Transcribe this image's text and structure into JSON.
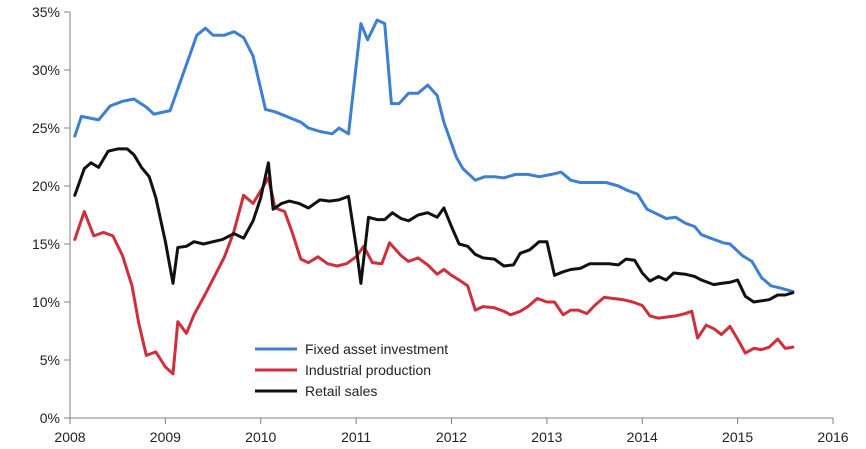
{
  "chart_data": {
    "type": "line",
    "title": "",
    "xlabel": "",
    "ylabel": "",
    "xlim": [
      2008,
      2016
    ],
    "ylim": [
      0,
      35
    ],
    "x_ticks": [
      "2008",
      "2009",
      "2010",
      "2011",
      "2012",
      "2013",
      "2014",
      "2015",
      "2016"
    ],
    "y_ticks": [
      "0%",
      "5%",
      "10%",
      "15%",
      "20%",
      "25%",
      "30%",
      "35%"
    ],
    "grid": false,
    "legend_position": "bottom-center",
    "series": [
      {
        "name": "Fixed asset investment",
        "color": "#3d7fd2",
        "points": [
          [
            2008.05,
            24.3
          ],
          [
            2008.12,
            26.0
          ],
          [
            2008.3,
            25.7
          ],
          [
            2008.42,
            26.9
          ],
          [
            2008.55,
            27.3
          ],
          [
            2008.67,
            27.5
          ],
          [
            2008.8,
            26.8
          ],
          [
            2008.88,
            26.2
          ],
          [
            2009.05,
            26.5
          ],
          [
            2009.2,
            30.0
          ],
          [
            2009.33,
            33.0
          ],
          [
            2009.42,
            33.6
          ],
          [
            2009.5,
            33.0
          ],
          [
            2009.62,
            33.0
          ],
          [
            2009.72,
            33.3
          ],
          [
            2009.82,
            32.8
          ],
          [
            2009.92,
            31.2
          ],
          [
            2010.05,
            26.6
          ],
          [
            2010.15,
            26.4
          ],
          [
            2010.3,
            25.9
          ],
          [
            2010.42,
            25.5
          ],
          [
            2010.5,
            25.0
          ],
          [
            2010.62,
            24.7
          ],
          [
            2010.75,
            24.5
          ],
          [
            2010.82,
            25.0
          ],
          [
            2010.92,
            24.5
          ],
          [
            2011.05,
            34.0
          ],
          [
            2011.12,
            32.6
          ],
          [
            2011.22,
            34.3
          ],
          [
            2011.3,
            34.0
          ],
          [
            2011.37,
            27.1
          ],
          [
            2011.45,
            27.1
          ],
          [
            2011.55,
            28.0
          ],
          [
            2011.65,
            28.0
          ],
          [
            2011.75,
            28.7
          ],
          [
            2011.85,
            27.8
          ],
          [
            2011.92,
            25.5
          ],
          [
            2012.05,
            22.5
          ],
          [
            2012.12,
            21.5
          ],
          [
            2012.25,
            20.5
          ],
          [
            2012.35,
            20.8
          ],
          [
            2012.45,
            20.8
          ],
          [
            2012.55,
            20.7
          ],
          [
            2012.67,
            21.0
          ],
          [
            2012.8,
            21.0
          ],
          [
            2012.92,
            20.8
          ],
          [
            2013.05,
            21.0
          ],
          [
            2013.15,
            21.2
          ],
          [
            2013.25,
            20.5
          ],
          [
            2013.35,
            20.3
          ],
          [
            2013.5,
            20.3
          ],
          [
            2013.62,
            20.3
          ],
          [
            2013.75,
            20.0
          ],
          [
            2013.85,
            19.6
          ],
          [
            2013.95,
            19.3
          ],
          [
            2014.05,
            18.0
          ],
          [
            2014.15,
            17.6
          ],
          [
            2014.25,
            17.2
          ],
          [
            2014.35,
            17.3
          ],
          [
            2014.45,
            16.8
          ],
          [
            2014.55,
            16.5
          ],
          [
            2014.62,
            15.8
          ],
          [
            2014.75,
            15.4
          ],
          [
            2014.85,
            15.1
          ],
          [
            2014.92,
            15.0
          ],
          [
            2015.05,
            14.0
          ],
          [
            2015.15,
            13.5
          ],
          [
            2015.25,
            12.1
          ],
          [
            2015.35,
            11.4
          ],
          [
            2015.45,
            11.2
          ],
          [
            2015.58,
            10.9
          ]
        ]
      },
      {
        "name": "Industrial production",
        "color": "#cf2f3b",
        "points": [
          [
            2008.05,
            15.4
          ],
          [
            2008.15,
            17.8
          ],
          [
            2008.25,
            15.7
          ],
          [
            2008.35,
            16.0
          ],
          [
            2008.45,
            15.7
          ],
          [
            2008.55,
            14.0
          ],
          [
            2008.65,
            11.4
          ],
          [
            2008.72,
            8.2
          ],
          [
            2008.8,
            5.4
          ],
          [
            2008.9,
            5.7
          ],
          [
            2009.0,
            4.4
          ],
          [
            2009.08,
            3.8
          ],
          [
            2009.13,
            8.3
          ],
          [
            2009.22,
            7.3
          ],
          [
            2009.3,
            8.9
          ],
          [
            2009.42,
            10.7
          ],
          [
            2009.52,
            12.3
          ],
          [
            2009.62,
            13.9
          ],
          [
            2009.72,
            16.1
          ],
          [
            2009.82,
            19.2
          ],
          [
            2009.92,
            18.5
          ],
          [
            2010.0,
            19.6
          ],
          [
            2010.08,
            20.7
          ],
          [
            2010.15,
            18.1
          ],
          [
            2010.25,
            17.8
          ],
          [
            2010.33,
            16.0
          ],
          [
            2010.42,
            13.7
          ],
          [
            2010.5,
            13.4
          ],
          [
            2010.6,
            13.9
          ],
          [
            2010.7,
            13.3
          ],
          [
            2010.8,
            13.1
          ],
          [
            2010.9,
            13.3
          ],
          [
            2011.0,
            13.9
          ],
          [
            2011.08,
            14.8
          ],
          [
            2011.17,
            13.4
          ],
          [
            2011.27,
            13.3
          ],
          [
            2011.35,
            15.1
          ],
          [
            2011.47,
            14.0
          ],
          [
            2011.55,
            13.5
          ],
          [
            2011.65,
            13.8
          ],
          [
            2011.75,
            13.2
          ],
          [
            2011.85,
            12.4
          ],
          [
            2011.92,
            12.8
          ],
          [
            2012.0,
            12.3
          ],
          [
            2012.08,
            11.9
          ],
          [
            2012.17,
            11.4
          ],
          [
            2012.25,
            9.3
          ],
          [
            2012.33,
            9.6
          ],
          [
            2012.45,
            9.5
          ],
          [
            2012.55,
            9.2
          ],
          [
            2012.62,
            8.9
          ],
          [
            2012.72,
            9.2
          ],
          [
            2012.8,
            9.6
          ],
          [
            2012.9,
            10.3
          ],
          [
            2013.0,
            10.0
          ],
          [
            2013.08,
            10.0
          ],
          [
            2013.17,
            8.9
          ],
          [
            2013.25,
            9.3
          ],
          [
            2013.33,
            9.3
          ],
          [
            2013.42,
            9.0
          ],
          [
            2013.5,
            9.7
          ],
          [
            2013.6,
            10.4
          ],
          [
            2013.7,
            10.3
          ],
          [
            2013.8,
            10.2
          ],
          [
            2013.9,
            10.0
          ],
          [
            2014.0,
            9.7
          ],
          [
            2014.08,
            8.8
          ],
          [
            2014.17,
            8.6
          ],
          [
            2014.25,
            8.7
          ],
          [
            2014.35,
            8.8
          ],
          [
            2014.45,
            9.0
          ],
          [
            2014.52,
            9.2
          ],
          [
            2014.58,
            6.9
          ],
          [
            2014.67,
            8.0
          ],
          [
            2014.75,
            7.7
          ],
          [
            2014.83,
            7.2
          ],
          [
            2014.92,
            7.9
          ],
          [
            2015.0,
            6.8
          ],
          [
            2015.08,
            5.6
          ],
          [
            2015.17,
            6.0
          ],
          [
            2015.25,
            5.9
          ],
          [
            2015.33,
            6.1
          ],
          [
            2015.42,
            6.8
          ],
          [
            2015.5,
            6.0
          ],
          [
            2015.58,
            6.1
          ]
        ]
      },
      {
        "name": "Retail sales",
        "color": "#111111",
        "points": [
          [
            2008.05,
            19.2
          ],
          [
            2008.15,
            21.5
          ],
          [
            2008.22,
            22.0
          ],
          [
            2008.3,
            21.6
          ],
          [
            2008.4,
            23.0
          ],
          [
            2008.5,
            23.2
          ],
          [
            2008.6,
            23.2
          ],
          [
            2008.67,
            22.7
          ],
          [
            2008.75,
            21.6
          ],
          [
            2008.83,
            20.8
          ],
          [
            2008.9,
            19.0
          ],
          [
            2009.0,
            15.2
          ],
          [
            2009.08,
            11.6
          ],
          [
            2009.13,
            14.7
          ],
          [
            2009.22,
            14.8
          ],
          [
            2009.3,
            15.2
          ],
          [
            2009.4,
            15.0
          ],
          [
            2009.5,
            15.2
          ],
          [
            2009.6,
            15.4
          ],
          [
            2009.72,
            15.9
          ],
          [
            2009.82,
            15.5
          ],
          [
            2009.92,
            17.0
          ],
          [
            2010.0,
            19.0
          ],
          [
            2010.08,
            22.0
          ],
          [
            2010.13,
            18.0
          ],
          [
            2010.22,
            18.5
          ],
          [
            2010.3,
            18.7
          ],
          [
            2010.4,
            18.5
          ],
          [
            2010.5,
            18.1
          ],
          [
            2010.62,
            18.8
          ],
          [
            2010.72,
            18.7
          ],
          [
            2010.82,
            18.8
          ],
          [
            2010.92,
            19.1
          ],
          [
            2011.0,
            14.8
          ],
          [
            2011.05,
            11.6
          ],
          [
            2011.13,
            17.3
          ],
          [
            2011.22,
            17.1
          ],
          [
            2011.3,
            17.1
          ],
          [
            2011.38,
            17.7
          ],
          [
            2011.47,
            17.2
          ],
          [
            2011.55,
            17.0
          ],
          [
            2011.65,
            17.5
          ],
          [
            2011.75,
            17.7
          ],
          [
            2011.85,
            17.3
          ],
          [
            2011.92,
            18.1
          ],
          [
            2012.0,
            16.5
          ],
          [
            2012.08,
            15.0
          ],
          [
            2012.17,
            14.8
          ],
          [
            2012.25,
            14.1
          ],
          [
            2012.33,
            13.8
          ],
          [
            2012.45,
            13.7
          ],
          [
            2012.55,
            13.1
          ],
          [
            2012.65,
            13.2
          ],
          [
            2012.72,
            14.2
          ],
          [
            2012.82,
            14.5
          ],
          [
            2012.92,
            15.2
          ],
          [
            2013.0,
            15.2
          ],
          [
            2013.08,
            12.3
          ],
          [
            2013.17,
            12.6
          ],
          [
            2013.25,
            12.8
          ],
          [
            2013.35,
            12.9
          ],
          [
            2013.45,
            13.3
          ],
          [
            2013.55,
            13.3
          ],
          [
            2013.65,
            13.3
          ],
          [
            2013.75,
            13.2
          ],
          [
            2013.83,
            13.7
          ],
          [
            2013.92,
            13.6
          ],
          [
            2014.0,
            12.5
          ],
          [
            2014.08,
            11.8
          ],
          [
            2014.17,
            12.2
          ],
          [
            2014.25,
            11.9
          ],
          [
            2014.33,
            12.5
          ],
          [
            2014.45,
            12.4
          ],
          [
            2014.55,
            12.2
          ],
          [
            2014.62,
            11.9
          ],
          [
            2014.75,
            11.5
          ],
          [
            2014.83,
            11.6
          ],
          [
            2014.92,
            11.7
          ],
          [
            2015.0,
            11.9
          ],
          [
            2015.08,
            10.5
          ],
          [
            2015.17,
            10.0
          ],
          [
            2015.25,
            10.1
          ],
          [
            2015.33,
            10.2
          ],
          [
            2015.42,
            10.6
          ],
          [
            2015.5,
            10.6
          ],
          [
            2015.58,
            10.8
          ]
        ]
      }
    ]
  }
}
